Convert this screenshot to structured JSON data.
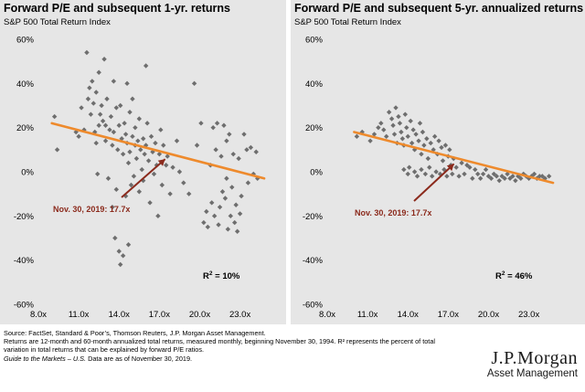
{
  "charts": [
    {
      "title": "Forward P/E and subsequent 1-yr. returns",
      "subtitle": "S&P 500 Total Return Index",
      "annotation": "Nov. 30, 2019: 17.7x",
      "r2_label": "R",
      "r2_value": "=   10%",
      "x_ticks": [
        "8.0x",
        "11.0x",
        "14.0x",
        "17.0x",
        "20.0x",
        "23.0x"
      ],
      "y_ticks": [
        "60%",
        "40%",
        "20%",
        "0%",
        "-20%",
        "-40%",
        "-60%"
      ]
    },
    {
      "title": "Forward P/E and subsequent 5-yr. annualized returns",
      "subtitle": "S&P 500 Total Return Index",
      "annotation": "Nov. 30, 2019: 17.7x",
      "r2_label": "R",
      "r2_value": "=   46%",
      "x_ticks": [
        "8.0x",
        "11.0x",
        "14.0x",
        "17.0x",
        "20.0x",
        "23.0x"
      ],
      "y_ticks": [
        "60%",
        "40%",
        "20%",
        "0%",
        "-20%",
        "-40%",
        "-60%"
      ]
    }
  ],
  "footer": {
    "line1": "Source: FactSet, Standard & Poor’s, Thomson Reuters, J.P. Morgan Asset Management.",
    "line2": "Returns are 12-month and 60-month annualized total returns, measured monthly, beginning November 30, 1994. R² represents the percent of total",
    "line3": "variation in total returns that can be explained by forward P/E ratios.",
    "line4_italic": "Guide to the Markets – U.S.",
    "line4_rest": " Data are as of November 30, 2019."
  },
  "logo": {
    "main": "J.P.Morgan",
    "sub": "Asset Management"
  },
  "colors": {
    "point": "#6e6e6e",
    "trend": "#ee8a2c",
    "arrow": "#8b2a1c",
    "annotation": "#8b2a1c",
    "panel_bg": "#e6e6e6"
  },
  "chart_data": [
    {
      "type": "scatter",
      "title": "Forward P/E and subsequent 1-yr. returns",
      "subtitle": "S&P 500 Total Return Index",
      "xlabel": "",
      "ylabel": "",
      "xlim": [
        8,
        25
      ],
      "ylim": [
        -60,
        60
      ],
      "x_ticks": [
        8,
        11,
        14,
        17,
        20,
        23
      ],
      "y_ticks": [
        60,
        40,
        20,
        0,
        -20,
        -40,
        -60
      ],
      "grid": false,
      "trendline": {
        "x": [
          9,
          24.8
        ],
        "y": [
          22,
          -3
        ]
      },
      "current": {
        "x": 17.7,
        "label": "Nov. 30, 2019: 17.7x"
      },
      "r_squared": 0.1,
      "points": [
        [
          9.2,
          25
        ],
        [
          9.4,
          10
        ],
        [
          10.8,
          18
        ],
        [
          11,
          16
        ],
        [
          11.2,
          29
        ],
        [
          11.4,
          19
        ],
        [
          11.6,
          54
        ],
        [
          11.7,
          33
        ],
        [
          11.8,
          38
        ],
        [
          11.9,
          26
        ],
        [
          12,
          41
        ],
        [
          12.1,
          31
        ],
        [
          12.2,
          18
        ],
        [
          12.3,
          13
        ],
        [
          12.3,
          36
        ],
        [
          12.4,
          -1
        ],
        [
          12.5,
          21
        ],
        [
          12.5,
          45
        ],
        [
          12.6,
          26
        ],
        [
          12.7,
          30
        ],
        [
          12.8,
          23
        ],
        [
          12.9,
          51
        ],
        [
          13,
          14
        ],
        [
          13,
          21
        ],
        [
          13.1,
          33
        ],
        [
          13.2,
          -3
        ],
        [
          13.3,
          19
        ],
        [
          13.4,
          25
        ],
        [
          13.5,
          12
        ],
        [
          13.5,
          -16
        ],
        [
          13.6,
          41
        ],
        [
          13.6,
          18
        ],
        [
          13.7,
          -30
        ],
        [
          13.8,
          29
        ],
        [
          13.8,
          -8
        ],
        [
          13.9,
          10
        ],
        [
          14,
          21
        ],
        [
          14,
          -36
        ],
        [
          14.1,
          -42
        ],
        [
          14.1,
          30
        ],
        [
          14.2,
          15
        ],
        [
          14.3,
          8
        ],
        [
          14.3,
          -38
        ],
        [
          14.4,
          22
        ],
        [
          14.5,
          -11
        ],
        [
          14.5,
          17
        ],
        [
          14.6,
          13
        ],
        [
          14.6,
          40
        ],
        [
          14.7,
          -33
        ],
        [
          14.7,
          4
        ],
        [
          14.8,
          27
        ],
        [
          14.8,
          9
        ],
        [
          14.9,
          -6
        ],
        [
          15,
          16
        ],
        [
          15,
          33
        ],
        [
          15.1,
          -2
        ],
        [
          15.2,
          12
        ],
        [
          15.2,
          20
        ],
        [
          15.3,
          6
        ],
        [
          15.4,
          14
        ],
        [
          15.5,
          -9
        ],
        [
          15.5,
          24
        ],
        [
          15.6,
          10
        ],
        [
          15.7,
          1
        ],
        [
          15.8,
          15
        ],
        [
          15.8,
          -4
        ],
        [
          15.9,
          8
        ],
        [
          16,
          12
        ],
        [
          16,
          48
        ],
        [
          16.1,
          22
        ],
        [
          16.2,
          5
        ],
        [
          16.3,
          -14
        ],
        [
          16.4,
          16
        ],
        [
          16.5,
          9
        ],
        [
          16.6,
          -1
        ],
        [
          16.7,
          13
        ],
        [
          16.8,
          3
        ],
        [
          16.9,
          -20
        ],
        [
          17,
          8
        ],
        [
          17.1,
          19
        ],
        [
          17.2,
          -6
        ],
        [
          17.3,
          12
        ],
        [
          17.5,
          3
        ],
        [
          17.6,
          7
        ],
        [
          17.8,
          -10
        ],
        [
          18,
          2
        ],
        [
          18.3,
          14
        ],
        [
          18.5,
          0
        ],
        [
          18.8,
          -5
        ],
        [
          19.2,
          -10
        ],
        [
          19.6,
          40
        ],
        [
          19.8,
          12
        ],
        [
          20.1,
          22
        ],
        [
          20.3,
          -23
        ],
        [
          20.5,
          -18
        ],
        [
          20.6,
          -25
        ],
        [
          20.8,
          3
        ],
        [
          20.9,
          -14
        ],
        [
          21,
          20
        ],
        [
          21.1,
          -20
        ],
        [
          21.2,
          10
        ],
        [
          21.3,
          22
        ],
        [
          21.4,
          -24
        ],
        [
          21.5,
          -16
        ],
        [
          21.6,
          7
        ],
        [
          21.7,
          -9
        ],
        [
          21.8,
          21
        ],
        [
          21.9,
          -12
        ],
        [
          22,
          -3
        ],
        [
          22,
          14
        ],
        [
          22.1,
          -26
        ],
        [
          22.2,
          17
        ],
        [
          22.3,
          -20
        ],
        [
          22.4,
          -7
        ],
        [
          22.5,
          8
        ],
        [
          22.6,
          -23
        ],
        [
          22.7,
          -15
        ],
        [
          22.8,
          -27
        ],
        [
          22.9,
          6
        ],
        [
          23,
          -19
        ],
        [
          23.1,
          -11
        ],
        [
          23.3,
          17
        ],
        [
          23.5,
          10
        ],
        [
          23.6,
          -5
        ],
        [
          23.8,
          11
        ],
        [
          24,
          -1
        ],
        [
          24.2,
          9
        ],
        [
          24.3,
          -3
        ]
      ]
    },
    {
      "type": "scatter",
      "title": "Forward P/E and subsequent 5-yr. annualized returns",
      "subtitle": "S&P 500 Total Return Index",
      "xlabel": "",
      "ylabel": "",
      "xlim": [
        8,
        25
      ],
      "ylim": [
        -60,
        60
      ],
      "x_ticks": [
        8,
        11,
        14,
        17,
        20,
        23
      ],
      "y_ticks": [
        60,
        40,
        20,
        0,
        -20,
        -40,
        -60
      ],
      "grid": false,
      "trendline": {
        "x": [
          10,
          24.8
        ],
        "y": [
          18,
          -5
        ]
      },
      "current": {
        "x": 17.7,
        "label": "Nov. 30, 2019: 17.7x"
      },
      "r_squared": 0.46,
      "points": [
        [
          10.2,
          16
        ],
        [
          10.6,
          18
        ],
        [
          11.2,
          14
        ],
        [
          11.5,
          17
        ],
        [
          11.8,
          20
        ],
        [
          12,
          22
        ],
        [
          12.2,
          19
        ],
        [
          12.4,
          16
        ],
        [
          12.6,
          27
        ],
        [
          12.8,
          24
        ],
        [
          12.9,
          21
        ],
        [
          13,
          17
        ],
        [
          13.1,
          29
        ],
        [
          13.2,
          13
        ],
        [
          13.3,
          25
        ],
        [
          13.4,
          22
        ],
        [
          13.5,
          18
        ],
        [
          13.6,
          15
        ],
        [
          13.7,
          12
        ],
        [
          13.7,
          1
        ],
        [
          13.8,
          26
        ],
        [
          13.9,
          20
        ],
        [
          14,
          16
        ],
        [
          14,
          -1
        ],
        [
          14.1,
          2
        ],
        [
          14.2,
          23
        ],
        [
          14.3,
          13
        ],
        [
          14.4,
          19
        ],
        [
          14.5,
          0
        ],
        [
          14.5,
          10
        ],
        [
          14.6,
          17
        ],
        [
          14.7,
          -2
        ],
        [
          14.8,
          14
        ],
        [
          14.9,
          22
        ],
        [
          15,
          8
        ],
        [
          15,
          1
        ],
        [
          15.1,
          18
        ],
        [
          15.2,
          12
        ],
        [
          15.3,
          -1
        ],
        [
          15.4,
          15
        ],
        [
          15.5,
          6
        ],
        [
          15.6,
          2
        ],
        [
          15.7,
          13
        ],
        [
          15.8,
          -2
        ],
        [
          15.9,
          10
        ],
        [
          16,
          16
        ],
        [
          16.1,
          0
        ],
        [
          16.2,
          8
        ],
        [
          16.3,
          14
        ],
        [
          16.4,
          -1
        ],
        [
          16.5,
          11
        ],
        [
          16.6,
          5
        ],
        [
          16.7,
          1
        ],
        [
          16.8,
          12
        ],
        [
          16.9,
          -2
        ],
        [
          17,
          7
        ],
        [
          17.1,
          10
        ],
        [
          17.2,
          3
        ],
        [
          17.3,
          -1
        ],
        [
          17.4,
          6
        ],
        [
          17.6,
          2
        ],
        [
          17.8,
          -2
        ],
        [
          18,
          4
        ],
        [
          18.2,
          -1
        ],
        [
          18.4,
          3
        ],
        [
          18.6,
          2
        ],
        [
          18.8,
          -3
        ],
        [
          19,
          1
        ],
        [
          19.2,
          -1
        ],
        [
          19.4,
          -3
        ],
        [
          19.6,
          -1
        ],
        [
          19.8,
          1
        ],
        [
          20,
          -2
        ],
        [
          20.2,
          -3
        ],
        [
          20.4,
          -1
        ],
        [
          20.6,
          -2
        ],
        [
          20.8,
          -4
        ],
        [
          21,
          -2
        ],
        [
          21.2,
          -3
        ],
        [
          21.4,
          -1
        ],
        [
          21.6,
          -3
        ],
        [
          21.8,
          -2
        ],
        [
          22,
          -4
        ],
        [
          22.2,
          -2
        ],
        [
          22.4,
          -3
        ],
        [
          22.6,
          -1
        ],
        [
          22.8,
          -2
        ],
        [
          23,
          -3
        ],
        [
          23.2,
          -2
        ],
        [
          23.4,
          -1
        ],
        [
          23.6,
          -3
        ],
        [
          23.8,
          -2
        ],
        [
          24,
          -2
        ],
        [
          24.2,
          -3
        ],
        [
          24.5,
          -2
        ]
      ]
    }
  ]
}
